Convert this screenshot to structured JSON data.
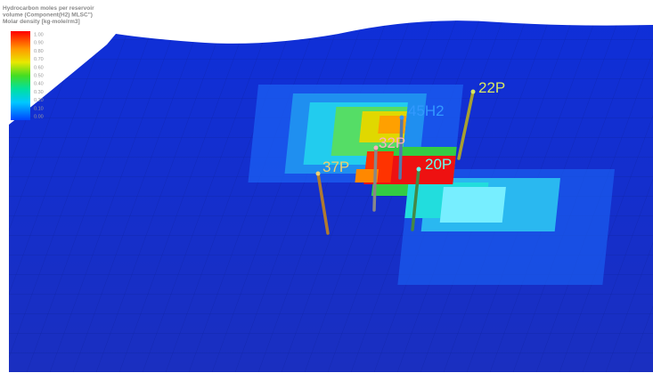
{
  "legend": {
    "title_lines": [
      "Hydrocarbon moles per reservoir",
      "volume (Component(H2) MLSC\")",
      "Molar density [kg-mole/rm3]"
    ],
    "ticks": [
      "1.00",
      "0.90",
      "0.80",
      "0.70",
      "0.60",
      "0.50",
      "0.40",
      "0.30",
      "0.20",
      "0.10",
      "0.00"
    ]
  },
  "wells": [
    "22P",
    "45H2",
    "32P",
    "20P",
    "37P"
  ]
}
